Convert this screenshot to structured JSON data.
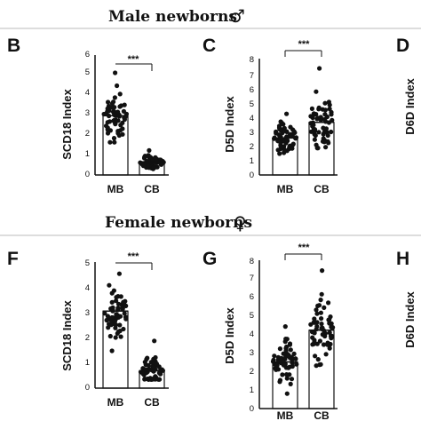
{
  "rows": [
    {
      "title": "Male newborns",
      "symbol": "♂",
      "panels": [
        {
          "letter": "B",
          "ylabel": "SCD18 Index",
          "ylim": [
            0,
            6
          ],
          "yticks": [
            "0",
            "1",
            "2",
            "3",
            "4",
            "5",
            "6"
          ],
          "significance": "***"
        },
        {
          "letter": "C",
          "ylabel": "D5D Index",
          "ylim": [
            0,
            8
          ],
          "yticks": [
            "0",
            "1",
            "2",
            "3",
            "4",
            "5",
            "6",
            "7",
            "8"
          ],
          "significance": "***"
        },
        {
          "letter": "D",
          "ylabel": "D6D Index"
        }
      ]
    },
    {
      "title": "Female newborns",
      "symbol": "♀",
      "panels": [
        {
          "letter": "F",
          "ylabel": "SCD18 Index",
          "ylim": [
            0,
            5
          ],
          "yticks": [
            "0",
            "1",
            "2",
            "3",
            "4",
            "5"
          ],
          "significance": "***"
        },
        {
          "letter": "G",
          "ylabel": "D5D Index",
          "ylim": [
            0,
            8
          ],
          "yticks": [
            "0",
            "1",
            "2",
            "3",
            "4",
            "5",
            "6",
            "7",
            "8"
          ],
          "significance": "***"
        },
        {
          "letter": "H",
          "ylabel": "D6D Index"
        }
      ]
    }
  ],
  "chart_data": [
    {
      "type": "bar",
      "panel": "B",
      "categories": [
        "MB",
        "CB"
      ],
      "values": [
        2.9,
        0.65
      ],
      "point_spread": [
        {
          "category": "MB",
          "min": 1.6,
          "max": 5.0
        },
        {
          "category": "CB",
          "min": 0.3,
          "max": 1.2
        }
      ],
      "ylabel": "SCD18 Index",
      "ylim": [
        0,
        6
      ]
    },
    {
      "type": "bar",
      "panel": "C",
      "categories": [
        "MB",
        "CB"
      ],
      "values": [
        2.6,
        3.7
      ],
      "point_spread": [
        {
          "category": "MB",
          "min": 1.5,
          "max": 4.3
        },
        {
          "category": "CB",
          "min": 1.9,
          "max": 7.5
        }
      ],
      "ylabel": "D5D Index",
      "ylim": [
        0,
        8
      ]
    },
    {
      "type": "bar",
      "panel": "F",
      "categories": [
        "MB",
        "CB"
      ],
      "values": [
        3.1,
        0.7
      ],
      "point_spread": [
        {
          "category": "MB",
          "min": 1.5,
          "max": 4.6
        },
        {
          "category": "CB",
          "min": 0.35,
          "max": 1.9
        }
      ],
      "ylabel": "SCD18 Index",
      "ylim": [
        0,
        5
      ]
    },
    {
      "type": "bar",
      "panel": "G",
      "categories": [
        "MB",
        "CB"
      ],
      "values": [
        2.5,
        4.2
      ],
      "point_spread": [
        {
          "category": "MB",
          "min": 0.8,
          "max": 4.4
        },
        {
          "category": "CB",
          "min": 2.3,
          "max": 7.4
        }
      ],
      "ylabel": "D5D Index",
      "ylim": [
        0,
        8
      ]
    }
  ],
  "colors": {
    "bar_fill": "#ffffff",
    "points": "#111111",
    "axis": "#111111",
    "divider": "#bbbbbb"
  }
}
